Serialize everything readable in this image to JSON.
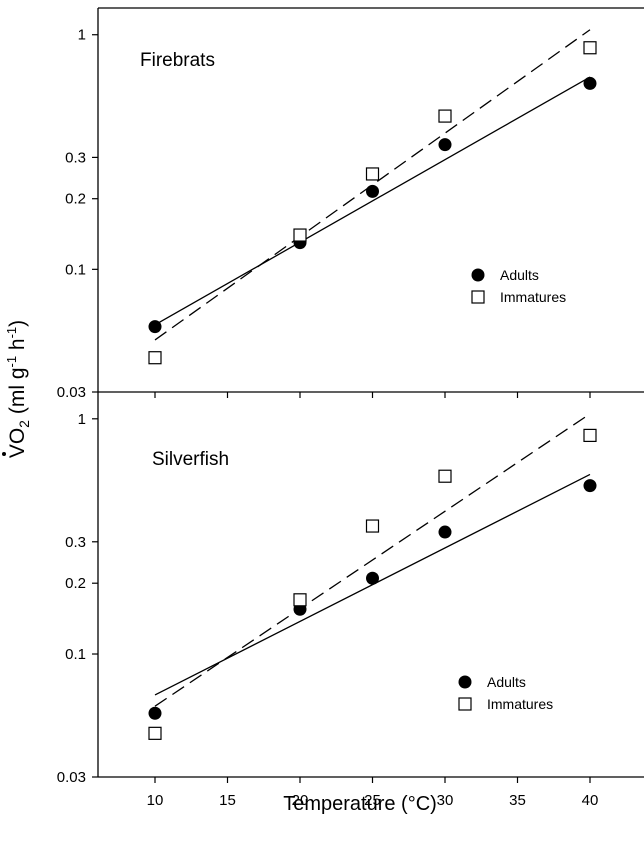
{
  "ylabel_parts": {
    "main": "VO",
    "sub": "2",
    "units": "(ml g",
    "e1": "-1",
    "h": " h",
    "e2": "-1",
    "close": ")"
  },
  "xlabel": "Temperature (°C)",
  "chart_data": [
    {
      "type": "scatter",
      "title": "Firebrats",
      "xlabel": "Temperature (°C)",
      "ylabel": "VO2 (ml g-1 h-1)",
      "yscale": "log",
      "xlim": [
        5,
        43
      ],
      "ylim": [
        0.03,
        1.3
      ],
      "xticks": [],
      "yticks": [
        0.03,
        0.1,
        0.2,
        0.3,
        1
      ],
      "ytick_labels": [
        "0.03",
        "0.1",
        "0.2",
        "0.3",
        "1"
      ],
      "legend_position": "right-middle",
      "series": [
        {
          "name": "Adults",
          "marker": "filled-circle",
          "line": "solid",
          "x": [
            10,
            20,
            25,
            30,
            40
          ],
          "y": [
            0.057,
            0.13,
            0.215,
            0.34,
            0.62
          ],
          "fit": {
            "x": [
              10,
              40
            ],
            "y": [
              0.058,
              0.66
            ]
          }
        },
        {
          "name": "Immatures",
          "marker": "open-square",
          "line": "dashed",
          "x": [
            10,
            20,
            25,
            30,
            40
          ],
          "y": [
            0.042,
            0.14,
            0.255,
            0.45,
            0.88
          ],
          "fit": {
            "x": [
              10,
              40
            ],
            "y": [
              0.05,
              1.05
            ]
          }
        }
      ]
    },
    {
      "type": "scatter",
      "title": "Silverfish",
      "xlabel": "Temperature (°C)",
      "ylabel": "VO2 (ml g-1 h-1)",
      "yscale": "log",
      "xlim": [
        5,
        43
      ],
      "ylim": [
        0.03,
        1.3
      ],
      "xticks": [
        10,
        15,
        20,
        25,
        30,
        35,
        40
      ],
      "yticks": [
        0.03,
        0.1,
        0.2,
        0.3,
        1
      ],
      "ytick_labels": [
        "0.03",
        "0.1",
        "0.2",
        "0.3",
        "1"
      ],
      "legend_position": "right-lower",
      "series": [
        {
          "name": "Adults",
          "marker": "filled-circle",
          "line": "solid",
          "x": [
            10,
            20,
            25,
            30,
            40
          ],
          "y": [
            0.056,
            0.155,
            0.21,
            0.33,
            0.52
          ],
          "fit": {
            "x": [
              10,
              40
            ],
            "y": [
              0.067,
              0.58
            ]
          }
        },
        {
          "name": "Immatures",
          "marker": "open-square",
          "line": "dashed",
          "x": [
            10,
            20,
            25,
            30,
            40
          ],
          "y": [
            0.046,
            0.17,
            0.35,
            0.57,
            0.85
          ],
          "fit": {
            "x": [
              10,
              40
            ],
            "y": [
              0.06,
              1.05
            ]
          }
        }
      ]
    }
  ]
}
